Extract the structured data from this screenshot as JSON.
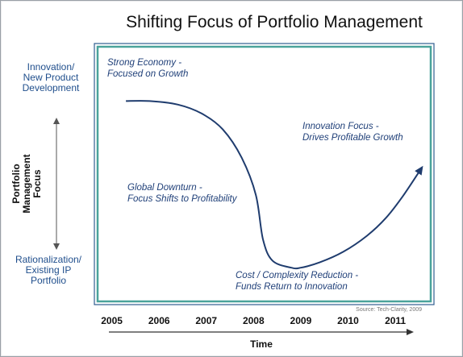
{
  "chart_data": {
    "type": "line",
    "title": "Shifting Focus of Portfolio Management",
    "xlabel": "Time",
    "ylabel_lines": [
      "Portfolio",
      "Management",
      "Focus"
    ],
    "y_top_label": [
      "Innovation/",
      "New Product",
      "Development"
    ],
    "y_bottom_label": [
      "Rationalization/",
      "Existing IP",
      "Portfolio"
    ],
    "categories": [
      "2005",
      "2006",
      "2007",
      "2008",
      "2009",
      "2010",
      "2011"
    ],
    "xlim": [
      2004.7,
      2011.75
    ],
    "ylim": [
      0,
      1
    ],
    "series": [
      {
        "x": [
          2005.3,
          2005.8,
          2006.4,
          2006.9,
          2007.35,
          2007.75,
          2008.05,
          2008.2,
          2008.4,
          2008.8,
          2009.0,
          2009.4,
          2009.9,
          2010.4,
          2010.8,
          2011.15,
          2011.55
        ],
        "y": [
          0.93,
          0.93,
          0.91,
          0.86,
          0.77,
          0.61,
          0.4,
          0.15,
          0.03,
          -0.01,
          -0.01,
          0.02,
          0.08,
          0.17,
          0.27,
          0.39,
          0.55
        ]
      }
    ],
    "annotations": [
      {
        "lines": [
          "Strong Economy -",
          "Focused on Growth"
        ]
      },
      {
        "lines": [
          "Global Downturn -",
          "Focus Shifts to Profitability"
        ]
      },
      {
        "lines": [
          "Cost / Complexity Reduction -",
          "Funds Return to Innovation"
        ]
      },
      {
        "lines": [
          "Innovation Focus -",
          "Drives Profitable Growth"
        ]
      }
    ],
    "source": "Source: Tech-Clarity, 2009",
    "grid": false,
    "legend": "none"
  },
  "colors": {
    "line": "#1f3c6e",
    "label_blue": "#1f4e8c",
    "annotation": "#1f3f78",
    "box_border": "#4aa39b",
    "box_outer": "#2f5e8f",
    "arrow": "#555555",
    "title": "#111111",
    "source": "#777777"
  }
}
